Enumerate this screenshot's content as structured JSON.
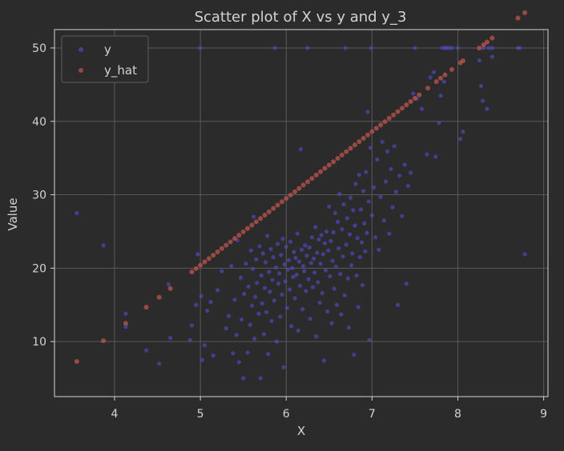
{
  "chart_data": {
    "type": "scatter",
    "title": "Scatter plot of X vs y and y_3",
    "xlabel": "X",
    "ylabel": "Value",
    "xlim": [
      3.3,
      9.05
    ],
    "ylim": [
      2.5,
      52.5
    ],
    "x_ticks": [
      4,
      5,
      6,
      7,
      8,
      9
    ],
    "y_ticks": [
      10,
      20,
      30,
      40,
      50
    ],
    "grid": true,
    "legend_position": "top-left",
    "colors": {
      "y": "#4b4ab8",
      "y_hat": "#b5524c",
      "background": "#2b2b2b",
      "axes": "#d3d3d3",
      "grid": "#5a5a5a"
    },
    "series": [
      {
        "name": "y",
        "points": [
          [
            3.56,
            27.5
          ],
          [
            3.87,
            23.1
          ],
          [
            4.13,
            13.8
          ],
          [
            4.13,
            12.0
          ],
          [
            4.37,
            8.8
          ],
          [
            4.52,
            7.0
          ],
          [
            4.63,
            17.8
          ],
          [
            4.65,
            10.5
          ],
          [
            4.88,
            10.2
          ],
          [
            4.9,
            12.2
          ],
          [
            4.95,
            15.0
          ],
          [
            4.97,
            21.9
          ],
          [
            5.0,
            50.0
          ],
          [
            5.01,
            16.2
          ],
          [
            5.02,
            7.5
          ],
          [
            5.05,
            9.5
          ],
          [
            5.08,
            14.2
          ],
          [
            5.12,
            15.4
          ],
          [
            5.15,
            8.1
          ],
          [
            5.2,
            17.0
          ],
          [
            5.25,
            19.6
          ],
          [
            5.3,
            11.8
          ],
          [
            5.33,
            13.5
          ],
          [
            5.36,
            20.3
          ],
          [
            5.38,
            8.4
          ],
          [
            5.4,
            15.7
          ],
          [
            5.42,
            10.9
          ],
          [
            5.43,
            23.8
          ],
          [
            5.45,
            7.2
          ],
          [
            5.47,
            18.7
          ],
          [
            5.48,
            13.0
          ],
          [
            5.5,
            5.0
          ],
          [
            5.51,
            16.5
          ],
          [
            5.53,
            20.6
          ],
          [
            5.55,
            8.5
          ],
          [
            5.56,
            17.5
          ],
          [
            5.58,
            12.3
          ],
          [
            5.59,
            22.4
          ],
          [
            5.6,
            14.9
          ],
          [
            5.61,
            19.9
          ],
          [
            5.62,
            27.0
          ],
          [
            5.63,
            10.4
          ],
          [
            5.64,
            16.1
          ],
          [
            5.65,
            21.2
          ],
          [
            5.66,
            18.0
          ],
          [
            5.68,
            13.8
          ],
          [
            5.69,
            23.0
          ],
          [
            5.7,
            5.0
          ],
          [
            5.71,
            19.0
          ],
          [
            5.72,
            15.2
          ],
          [
            5.73,
            22.0
          ],
          [
            5.74,
            11.0
          ],
          [
            5.75,
            17.3
          ],
          [
            5.76,
            20.8
          ],
          [
            5.77,
            14.0
          ],
          [
            5.78,
            24.4
          ],
          [
            5.79,
            8.3
          ],
          [
            5.8,
            19.5
          ],
          [
            5.81,
            16.8
          ],
          [
            5.82,
            22.6
          ],
          [
            5.83,
            12.8
          ],
          [
            5.84,
            18.4
          ],
          [
            5.85,
            21.5
          ],
          [
            5.86,
            15.6
          ],
          [
            5.87,
            50.0
          ],
          [
            5.88,
            20.1
          ],
          [
            5.89,
            10.0
          ],
          [
            5.9,
            23.3
          ],
          [
            5.91,
            17.9
          ],
          [
            5.92,
            19.3
          ],
          [
            5.93,
            13.4
          ],
          [
            5.94,
            21.8
          ],
          [
            5.95,
            16.4
          ],
          [
            5.96,
            24.0
          ],
          [
            5.97,
            6.5
          ],
          [
            5.98,
            20.5
          ],
          [
            5.99,
            18.2
          ],
          [
            6.0,
            22.9
          ],
          [
            6.01,
            14.6
          ],
          [
            6.02,
            19.8
          ],
          [
            6.03,
            21.1
          ],
          [
            6.04,
            17.1
          ],
          [
            6.05,
            23.6
          ],
          [
            6.06,
            12.1
          ],
          [
            6.07,
            20.0
          ],
          [
            6.08,
            18.8
          ],
          [
            6.09,
            22.2
          ],
          [
            6.1,
            15.9
          ],
          [
            6.11,
            21.4
          ],
          [
            6.12,
            19.1
          ],
          [
            6.13,
            24.7
          ],
          [
            6.14,
            11.5
          ],
          [
            6.15,
            20.9
          ],
          [
            6.16,
            17.6
          ],
          [
            6.17,
            36.2
          ],
          [
            6.18,
            22.5
          ],
          [
            6.19,
            14.4
          ],
          [
            6.2,
            20.3
          ],
          [
            6.21,
            19.6
          ],
          [
            6.22,
            23.1
          ],
          [
            6.23,
            16.9
          ],
          [
            6.24,
            21.7
          ],
          [
            6.25,
            50.0
          ],
          [
            6.26,
            18.5
          ],
          [
            6.27,
            22.8
          ],
          [
            6.28,
            13.1
          ],
          [
            6.29,
            20.7
          ],
          [
            6.3,
            24.2
          ],
          [
            6.31,
            17.4
          ],
          [
            6.32,
            21.3
          ],
          [
            6.33,
            19.4
          ],
          [
            6.34,
            25.6
          ],
          [
            6.35,
            10.7
          ],
          [
            6.36,
            22.1
          ],
          [
            6.37,
            18.1
          ],
          [
            6.38,
            23.9
          ],
          [
            6.39,
            15.3
          ],
          [
            6.4,
            20.6
          ],
          [
            6.41,
            24.5
          ],
          [
            6.42,
            16.6
          ],
          [
            6.43,
            21.9
          ],
          [
            6.44,
            7.4
          ],
          [
            6.45,
            23.4
          ],
          [
            6.46,
            19.7
          ],
          [
            6.47,
            25.0
          ],
          [
            6.48,
            14.1
          ],
          [
            6.49,
            22.4
          ],
          [
            6.5,
            28.4
          ],
          [
            6.51,
            18.9
          ],
          [
            6.52,
            23.7
          ],
          [
            6.53,
            12.5
          ],
          [
            6.54,
            21.0
          ],
          [
            6.55,
            24.9
          ],
          [
            6.56,
            17.2
          ],
          [
            6.57,
            27.5
          ],
          [
            6.58,
            20.2
          ],
          [
            6.59,
            15.0
          ],
          [
            6.6,
            26.3
          ],
          [
            6.61,
            22.7
          ],
          [
            6.62,
            30.1
          ],
          [
            6.63,
            19.2
          ],
          [
            6.64,
            13.7
          ],
          [
            6.65,
            25.3
          ],
          [
            6.66,
            21.6
          ],
          [
            6.67,
            28.7
          ],
          [
            6.68,
            16.3
          ],
          [
            6.69,
            50.0
          ],
          [
            6.7,
            23.2
          ],
          [
            6.71,
            26.8
          ],
          [
            6.72,
            18.6
          ],
          [
            6.73,
            11.9
          ],
          [
            6.74,
            24.6
          ],
          [
            6.75,
            29.6
          ],
          [
            6.76,
            20.4
          ],
          [
            6.77,
            22.0
          ],
          [
            6.78,
            27.9
          ],
          [
            6.79,
            8.2
          ],
          [
            6.8,
            25.8
          ],
          [
            6.81,
            31.5
          ],
          [
            6.82,
            19.0
          ],
          [
            6.83,
            24.1
          ],
          [
            6.84,
            14.7
          ],
          [
            6.85,
            32.7
          ],
          [
            6.86,
            21.5
          ],
          [
            6.87,
            28.0
          ],
          [
            6.88,
            23.5
          ],
          [
            6.89,
            17.7
          ],
          [
            6.9,
            30.5
          ],
          [
            6.91,
            26.1
          ],
          [
            6.92,
            22.3
          ],
          [
            6.93,
            33.1
          ],
          [
            6.94,
            24.8
          ],
          [
            6.95,
            41.3
          ],
          [
            6.96,
            29.1
          ],
          [
            6.97,
            10.2
          ],
          [
            6.98,
            36.4
          ],
          [
            6.99,
            50.0
          ],
          [
            7.0,
            27.2
          ],
          [
            7.02,
            31.0
          ],
          [
            7.04,
            24.2
          ],
          [
            7.06,
            34.8
          ],
          [
            7.08,
            22.5
          ],
          [
            7.1,
            29.7
          ],
          [
            7.12,
            37.2
          ],
          [
            7.14,
            26.5
          ],
          [
            7.16,
            31.8
          ],
          [
            7.18,
            35.9
          ],
          [
            7.2,
            24.7
          ],
          [
            7.22,
            33.5
          ],
          [
            7.24,
            28.3
          ],
          [
            7.26,
            36.6
          ],
          [
            7.28,
            30.4
          ],
          [
            7.3,
            15.0
          ],
          [
            7.32,
            32.6
          ],
          [
            7.35,
            27.1
          ],
          [
            7.38,
            34.1
          ],
          [
            7.4,
            17.9
          ],
          [
            7.42,
            31.2
          ],
          [
            7.45,
            33.0
          ],
          [
            7.48,
            43.8
          ],
          [
            7.5,
            50.0
          ],
          [
            7.52,
            43.1
          ],
          [
            7.58,
            41.7
          ],
          [
            7.64,
            35.5
          ],
          [
            7.68,
            46.0
          ],
          [
            7.72,
            46.7
          ],
          [
            7.74,
            35.2
          ],
          [
            7.78,
            39.8
          ],
          [
            7.8,
            43.5
          ],
          [
            7.82,
            50.0
          ],
          [
            7.84,
            45.4
          ],
          [
            7.85,
            50.0
          ],
          [
            7.87,
            50.0
          ],
          [
            7.9,
            50.0
          ],
          [
            7.93,
            50.0
          ],
          [
            8.0,
            50.0
          ],
          [
            8.03,
            37.6
          ],
          [
            8.06,
            38.6
          ],
          [
            8.25,
            48.3
          ],
          [
            8.27,
            44.8
          ],
          [
            8.29,
            42.8
          ],
          [
            8.3,
            50.0
          ],
          [
            8.34,
            41.7
          ],
          [
            8.36,
            50.0
          ],
          [
            8.4,
            50.0
          ],
          [
            8.4,
            48.8
          ],
          [
            8.7,
            50.0
          ],
          [
            8.72,
            50.0
          ],
          [
            8.78,
            21.9
          ]
        ]
      },
      {
        "name": "y_hat",
        "x_values": [
          3.56,
          3.87,
          4.13,
          4.37,
          4.52,
          4.65,
          4.9,
          4.95,
          5.0,
          5.05,
          5.1,
          5.15,
          5.2,
          5.25,
          5.3,
          5.35,
          5.4,
          5.45,
          5.5,
          5.55,
          5.6,
          5.65,
          5.7,
          5.75,
          5.8,
          5.85,
          5.9,
          5.95,
          6.0,
          6.05,
          6.1,
          6.15,
          6.2,
          6.25,
          6.3,
          6.35,
          6.4,
          6.45,
          6.5,
          6.55,
          6.6,
          6.65,
          6.7,
          6.75,
          6.8,
          6.85,
          6.9,
          6.95,
          7.0,
          7.05,
          7.1,
          7.15,
          7.2,
          7.25,
          7.3,
          7.35,
          7.4,
          7.45,
          7.5,
          7.55,
          7.65,
          7.75,
          7.8,
          7.85,
          7.93,
          8.03,
          8.06,
          8.25,
          8.3,
          8.34,
          8.4,
          8.7,
          8.78
        ],
        "slope": 9.1,
        "intercept": -25.1
      }
    ]
  }
}
